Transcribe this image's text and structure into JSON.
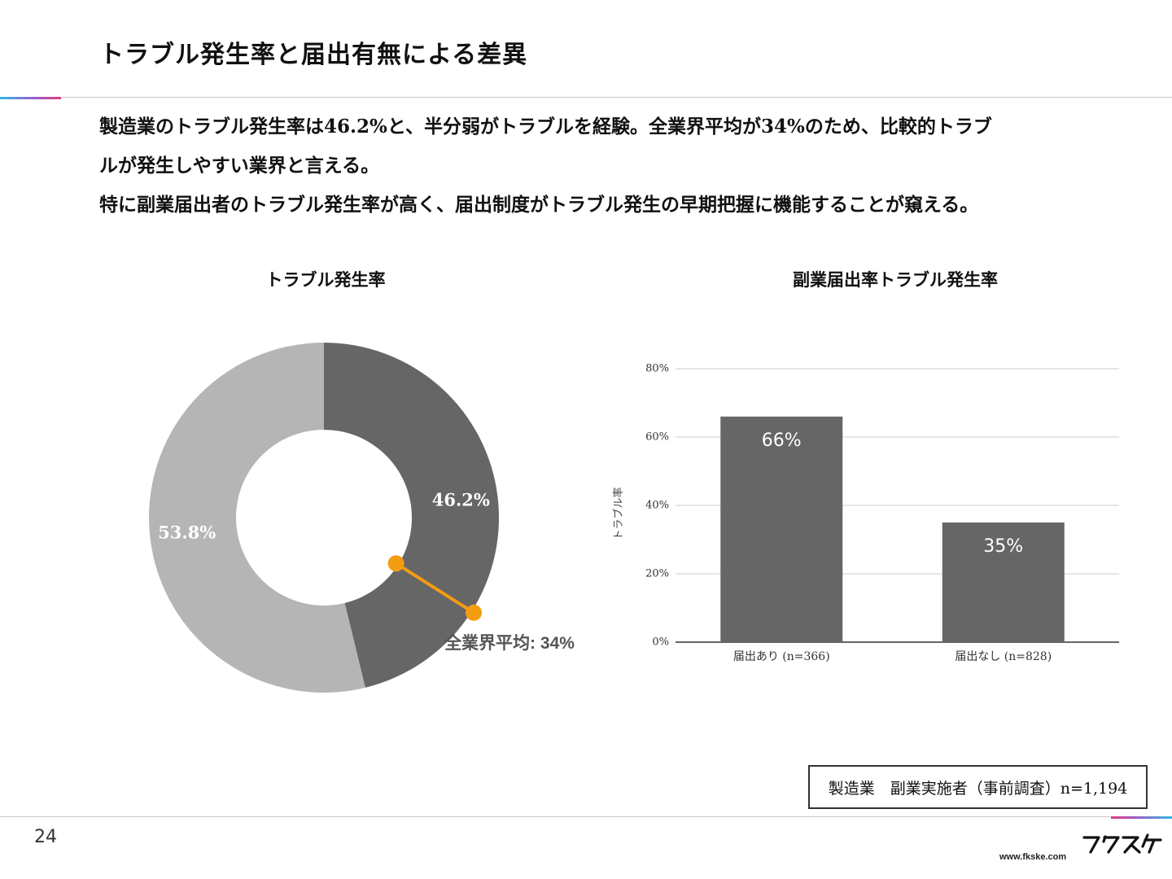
{
  "slide": {
    "title": "トラブル発生率と届出有無による差異",
    "body_lines": [
      "製造業のトラブル発生率は46.2%と、半分弱がトラブルを経験。全業界平均が34%のため、比較的トラブ",
      "ルが発生しやすい業界と言える。",
      "特に副業届出者のトラブル発生率が高く、届出制度がトラブル発生の早期把握に機能することが窺える。"
    ],
    "note": "製造業　副業実施者（事前調査）n=1,194",
    "page_number": "24",
    "site_url": "www.fkske.com",
    "logo_icon": "fukusuke-logo-icon"
  },
  "chart_data": [
    {
      "type": "pie",
      "style": "donut",
      "title": "トラブル発生率",
      "slices": [
        {
          "label": "46.2%",
          "value": 46.2,
          "color": "#666666"
        },
        {
          "label": "53.8%",
          "value": 53.8,
          "color": "#b5b5b5"
        }
      ],
      "annotation": {
        "label": "全業界平均: 34%",
        "value": 34,
        "color": "#f39c12"
      }
    },
    {
      "type": "bar",
      "title": "副業届出率トラブル発生率",
      "categories": [
        "届出あり (n=366)",
        "届出なし (n=828)"
      ],
      "values": [
        66,
        35
      ],
      "value_labels": [
        "66%",
        "35%"
      ],
      "ylabel": "トラブル率",
      "ylim": [
        0,
        80
      ],
      "yticks": [
        0,
        20,
        40,
        60,
        80
      ],
      "ytick_labels": [
        "0%",
        "20%",
        "40%",
        "60%",
        "80%"
      ],
      "grid": true,
      "bar_color": "#666666"
    }
  ]
}
